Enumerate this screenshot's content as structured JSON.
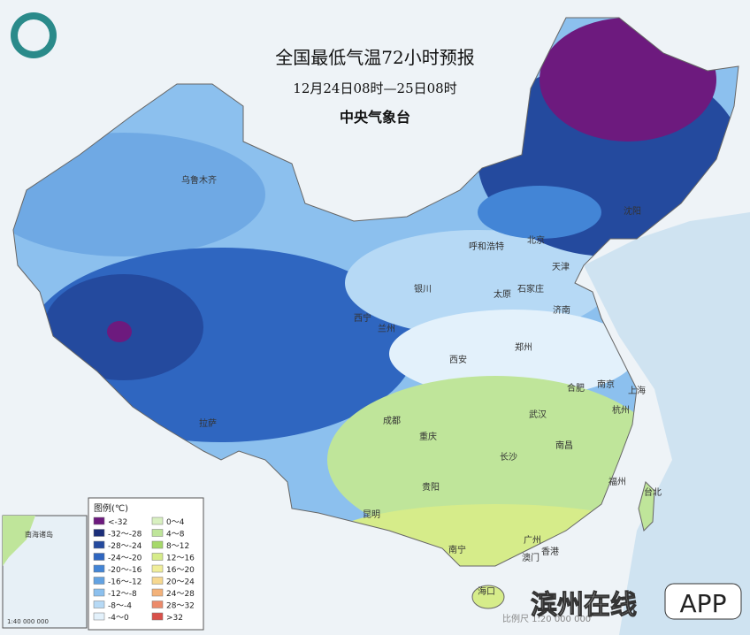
{
  "header": {
    "title": "全国最低气温72小时预报",
    "subtitle": "12月24日08时—25日08时",
    "agency": "中央气象台"
  },
  "legend": {
    "title": "图例(℃)",
    "items": [
      {
        "label": "<-32",
        "color": "#6d1a7e"
      },
      {
        "label": "-32～-28",
        "color": "#1c2f7a"
      },
      {
        "label": "-28～-24",
        "color": "#244a9e"
      },
      {
        "label": "-24～-20",
        "color": "#2f66c0"
      },
      {
        "label": "-20～-16",
        "color": "#4385d6"
      },
      {
        "label": "-16～-12",
        "color": "#62a2e2"
      },
      {
        "label": "-12～-8",
        "color": "#8cc0ee"
      },
      {
        "label": "-8～-4",
        "color": "#b6d9f5"
      },
      {
        "label": "-4～0",
        "color": "#e3f1fb"
      },
      {
        "label": "0～4",
        "color": "#d8f0c0"
      },
      {
        "label": "4～8",
        "color": "#bfe59a"
      },
      {
        "label": "8～12",
        "color": "#a6d96a"
      },
      {
        "label": "12～16",
        "color": "#d6ec8a"
      },
      {
        "label": "16～20",
        "color": "#f0ee9a"
      },
      {
        "label": "20～24",
        "color": "#f6d890"
      },
      {
        "label": "24～28",
        "color": "#f3b27a"
      },
      {
        "label": "28～32",
        "color": "#ec8a6a"
      },
      {
        "label": ">32",
        "color": "#d8504a"
      }
    ]
  },
  "cities": [
    "乌鲁木齐",
    "呼和浩特",
    "北京",
    "天津",
    "石家庄",
    "太原",
    "银川",
    "西宁",
    "兰州",
    "济南",
    "郑州",
    "西安",
    "合肥",
    "南京",
    "上海",
    "杭州",
    "武汉",
    "成都",
    "重庆",
    "长沙",
    "南昌",
    "贵阳",
    "昆明",
    "福州",
    "台北",
    "南宁",
    "广州",
    "澳门",
    "香港",
    "海口",
    "拉萨",
    "沈阳"
  ],
  "inset": {
    "label": "南海诸岛",
    "scale": "1:40 000 000"
  },
  "footer": {
    "scale": "比例尺 1:20 000 000",
    "watermark": "滨州在线",
    "app": "APP"
  }
}
